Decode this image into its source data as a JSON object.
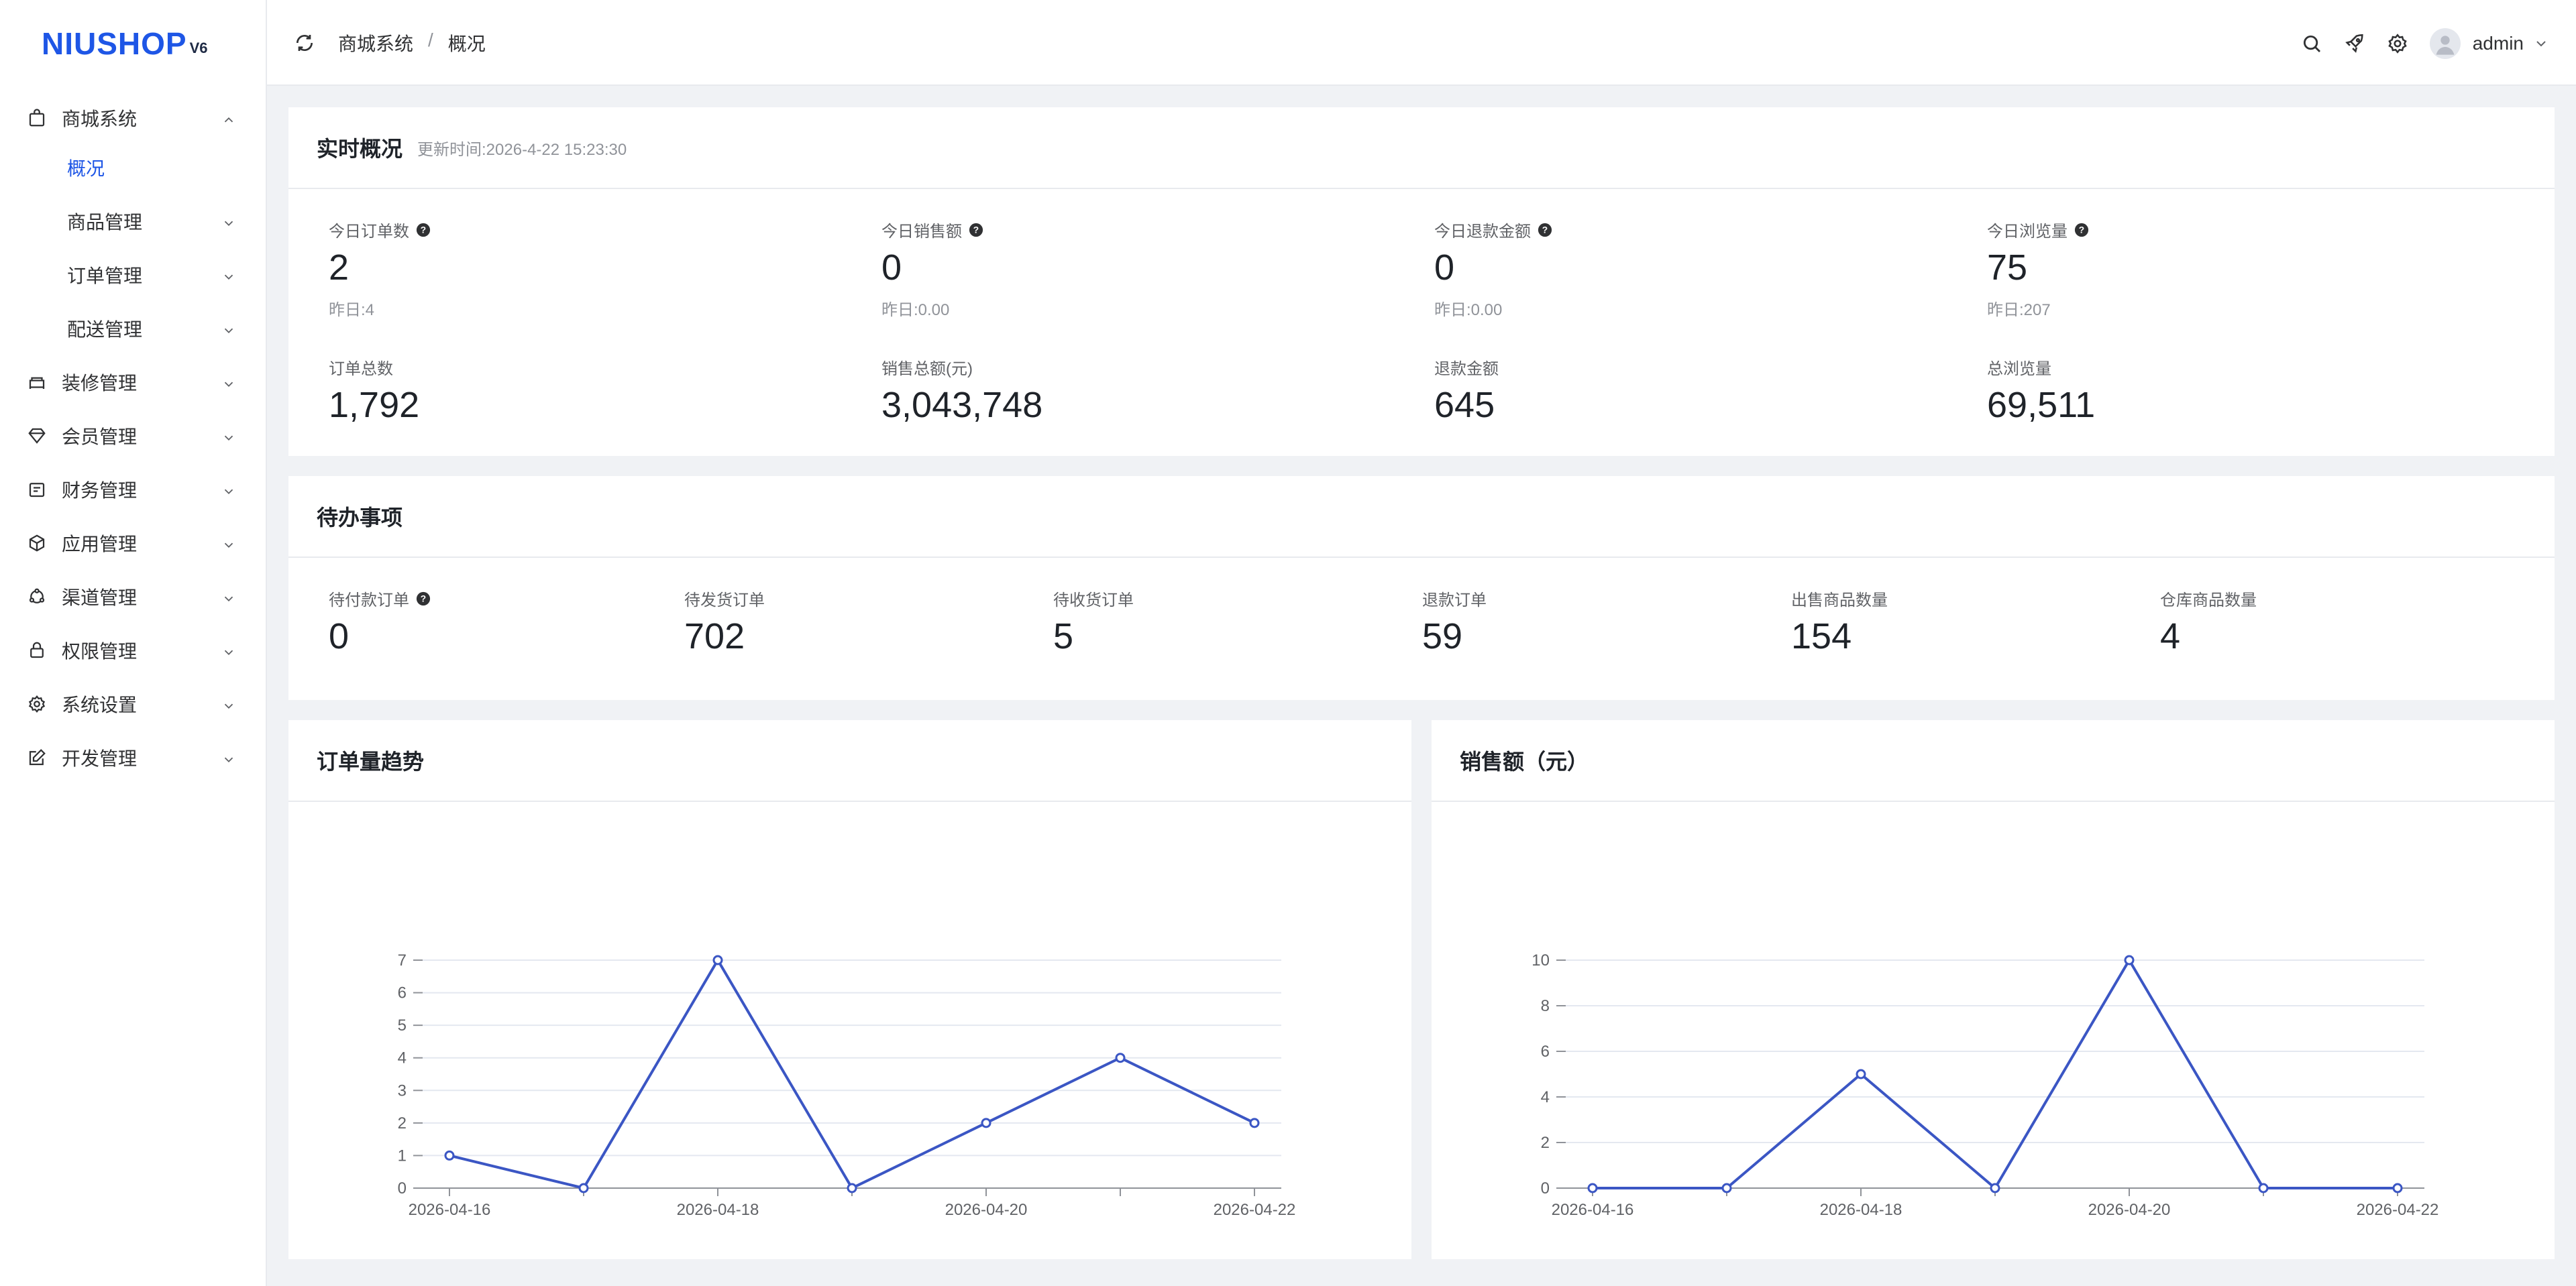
{
  "logo": {
    "main": "NIUSHOP",
    "sub": "V6"
  },
  "header": {
    "breadcrumb": [
      "商城系统",
      "概况"
    ],
    "breadcrumb_sep": "/",
    "username": "admin"
  },
  "sidebar": {
    "items": [
      {
        "label": "商城系统",
        "icon": "bag-icon",
        "expanded": true
      },
      {
        "label": "概况",
        "active": true
      },
      {
        "label": "商品管理"
      },
      {
        "label": "订单管理"
      },
      {
        "label": "配送管理"
      },
      {
        "label": "装修管理",
        "icon": "decor-icon"
      },
      {
        "label": "会员管理",
        "icon": "diamond-icon"
      },
      {
        "label": "财务管理",
        "icon": "wallet-icon"
      },
      {
        "label": "应用管理",
        "icon": "cube-icon"
      },
      {
        "label": "渠道管理",
        "icon": "channel-icon"
      },
      {
        "label": "权限管理",
        "icon": "lock-icon"
      },
      {
        "label": "系统设置",
        "icon": "gear-icon"
      },
      {
        "label": "开发管理",
        "icon": "edit-icon"
      }
    ]
  },
  "realtime": {
    "title": "实时概况",
    "update_time": "更新时间:2026-4-22 15:23:30",
    "stats": [
      {
        "label": "今日订单数",
        "value": "2",
        "yesterday": "昨日:4",
        "help": true
      },
      {
        "label": "今日销售额",
        "value": "0",
        "yesterday": "昨日:0.00",
        "help": true
      },
      {
        "label": "今日退款金额",
        "value": "0",
        "yesterday": "昨日:0.00",
        "help": true
      },
      {
        "label": "今日浏览量",
        "value": "75",
        "yesterday": "昨日:207",
        "help": true
      }
    ],
    "totals": [
      {
        "label": "订单总数",
        "value": "1,792"
      },
      {
        "label": "销售总额(元)",
        "value": "3,043,748"
      },
      {
        "label": "退款金额",
        "value": "645"
      },
      {
        "label": "总浏览量",
        "value": "69,511"
      }
    ]
  },
  "todo": {
    "title": "待办事项",
    "items": [
      {
        "label": "待付款订单",
        "value": "0",
        "help": true
      },
      {
        "label": "待发货订单",
        "value": "702"
      },
      {
        "label": "待收货订单",
        "value": "5"
      },
      {
        "label": "退款订单",
        "value": "59"
      },
      {
        "label": "出售商品数量",
        "value": "154"
      },
      {
        "label": "仓库商品数量",
        "value": "4"
      }
    ]
  },
  "charts": {
    "orders_title": "订单量趋势",
    "sales_title": "销售额（元）"
  },
  "chart_data": [
    {
      "type": "line",
      "title": "订单量趋势",
      "x": [
        "2026-04-16",
        "2026-04-17",
        "2026-04-18",
        "2026-04-19",
        "2026-04-20",
        "2026-04-21",
        "2026-04-22"
      ],
      "x_tick_labels": [
        "2026-04-16",
        "2026-04-18",
        "2026-04-20",
        "2026-04-22"
      ],
      "series": [
        {
          "values": [
            1,
            0,
            7,
            0,
            2,
            4,
            2
          ]
        }
      ],
      "ylim": [
        0,
        7
      ],
      "y_ticks": [
        0,
        1,
        2,
        3,
        4,
        5,
        6,
        7
      ],
      "grid": true,
      "color": "#3b56c4"
    },
    {
      "type": "line",
      "title": "销售额（元）",
      "x": [
        "2026-04-16",
        "2026-04-17",
        "2026-04-18",
        "2026-04-19",
        "2026-04-20",
        "2026-04-21",
        "2026-04-22"
      ],
      "x_tick_labels": [
        "2026-04-16",
        "2026-04-18",
        "2026-04-20",
        "2026-04-22"
      ],
      "series": [
        {
          "values": [
            0,
            0,
            5,
            0,
            10,
            0,
            0
          ]
        }
      ],
      "ylim": [
        0,
        10
      ],
      "y_ticks": [
        0,
        2,
        4,
        6,
        8,
        10
      ],
      "grid": true,
      "color": "#3b56c4"
    }
  ],
  "colors": {
    "accent": "#1e56e6",
    "line": "#3b56c4",
    "grid": "#e4e8f0"
  }
}
